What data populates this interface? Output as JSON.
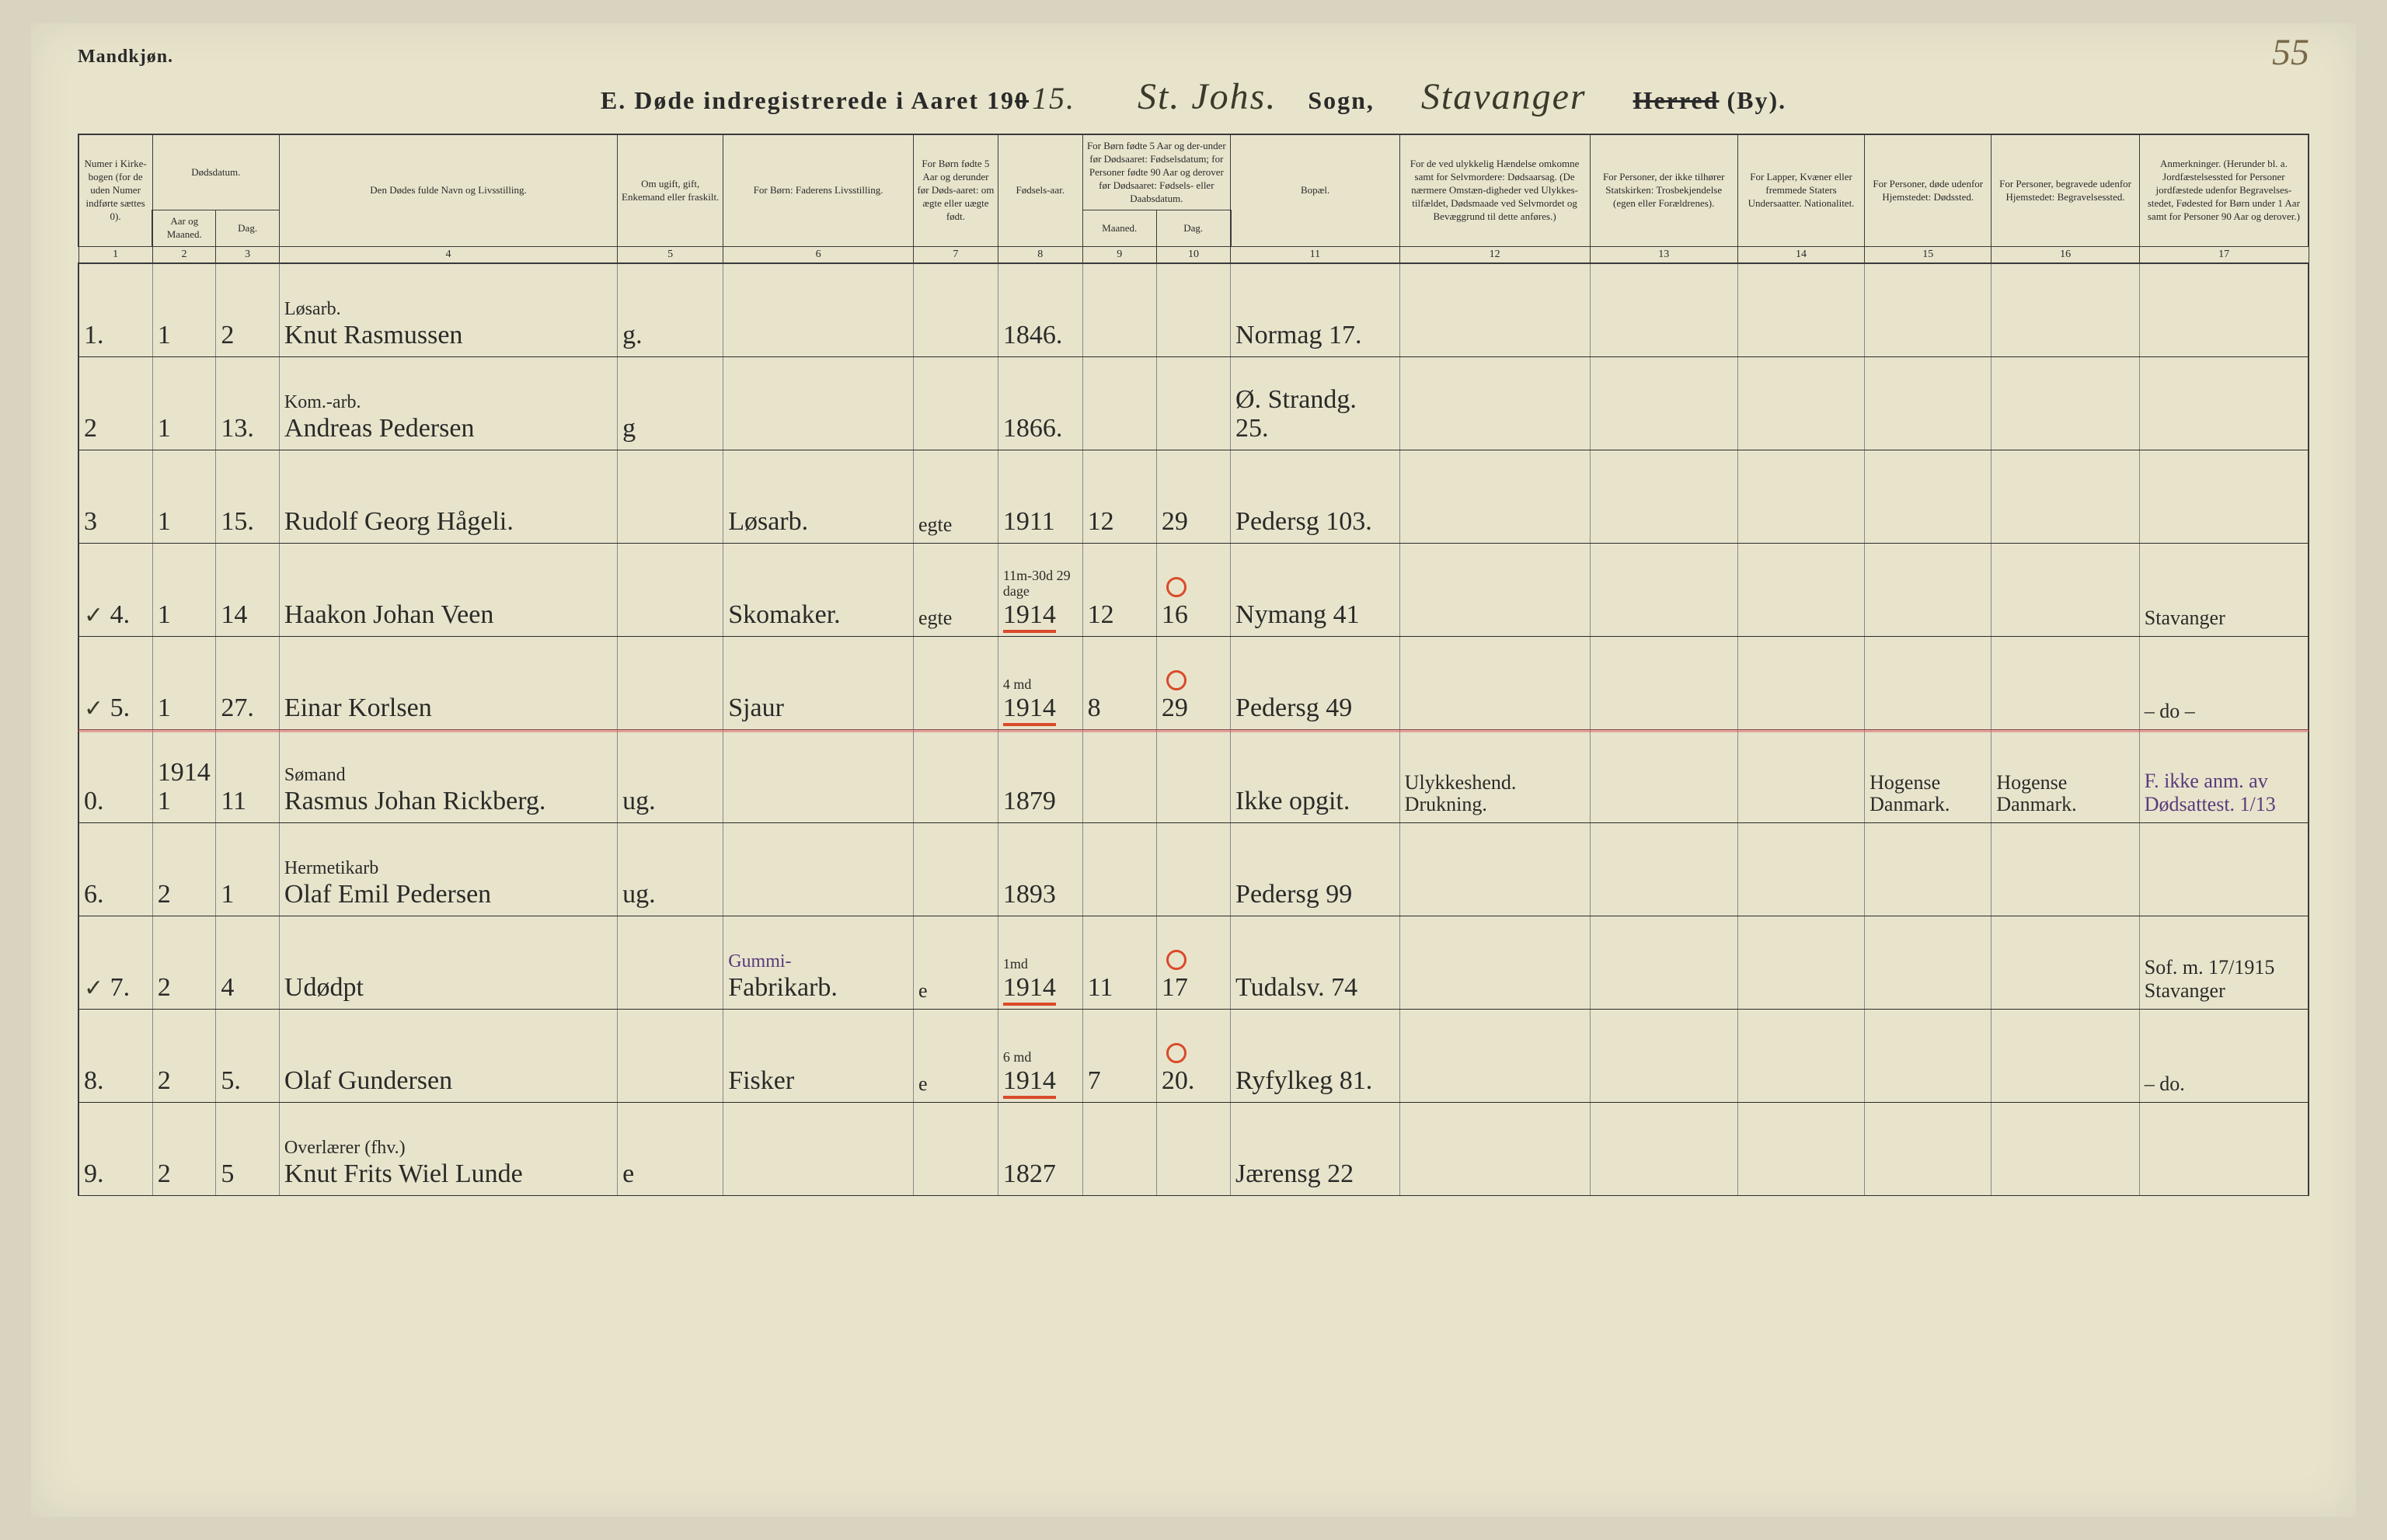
{
  "header": {
    "top_left": "Mandkjøn.",
    "title_prefix": "E.  Døde indregistrerede i Aaret 19",
    "year_strike": "0",
    "year_cursive": "15.",
    "sogn_cursive": "St. Johs.",
    "sogn_label": "Sogn,",
    "herred_cursive": "Stavanger",
    "herred_label_strike": "Herred",
    "herred_label_tail": " (By).",
    "page_number": "55"
  },
  "cols": {
    "c1": "Numer i Kirke-bogen (for de uden Numer indførte sættes 0).",
    "c2_group": "Dødsdatum.",
    "c2": "Aar og Maaned.",
    "c3": "Dag.",
    "c4": "Den Dødes fulde Navn og Livsstilling.",
    "c5": "Om ugift, gift, Enkemand eller fraskilt.",
    "c6": "For Børn: Faderens Livsstilling.",
    "c7": "For Børn fødte 5 Aar og derunder før Døds-aaret: om ægte eller uægte født.",
    "c8": "Fødsels-aar.",
    "c9_group": "For Børn fødte 5 Aar og der-under før Dødsaaret: Fødselsdatum; for Personer fødte 90 Aar og derover før Dødsaaret: Fødsels- eller Daabsdatum.",
    "c9": "Maaned.",
    "c10": "Dag.",
    "c11": "Bopæl.",
    "c12": "For de ved ulykkelig Hændelse omkomne samt for Selvmordere: Dødsaarsag. (De nærmere Omstæn-digheder ved Ulykkes-tilfældet, Dødsmaade ved Selvmordet og Bevæggrund til dette anføres.)",
    "c13": "For Personer, der ikke tilhører Statskirken: Trosbekjendelse (egen eller Forældrenes).",
    "c14": "For Lapper, Kvæner eller fremmede Staters Undersaatter. Nationalitet.",
    "c15": "For Personer, døde udenfor Hjemstedet: Dødssted.",
    "c16": "For Personer, begravede udenfor Hjemstedet: Begravelsessted.",
    "c17": "Anmerkninger. (Herunder bl. a. Jordfæstelsessted for Personer jordfæstede udenfor Begravelses-stedet, Fødested for Børn under 1 Aar samt for Personer 90 Aar og derover.)"
  },
  "colnums": [
    "1",
    "2",
    "3",
    "4",
    "5",
    "6",
    "7",
    "8",
    "9",
    "10",
    "11",
    "12",
    "13",
    "14",
    "15",
    "16",
    "17"
  ],
  "rows": [
    {
      "n": "1.",
      "m": "1",
      "d": "2",
      "name_upper": "Løsarb.",
      "name": "Knut Rasmussen",
      "civ": "g.",
      "father": "",
      "leg": "",
      "yr": "1846.",
      "fm": "",
      "fd": "",
      "addr": "Normag 17.",
      "cause": "",
      "rel": "",
      "nat": "",
      "dsted": "",
      "bsted": "",
      "anm": ""
    },
    {
      "n": "2",
      "m": "1",
      "d": "13.",
      "name_upper": "Kom.-arb.",
      "name": "Andreas Pedersen",
      "civ": "g",
      "father": "",
      "leg": "",
      "yr": "1866.",
      "fm": "",
      "fd": "",
      "addr": "Ø. Strandg. 25.",
      "cause": "",
      "rel": "",
      "nat": "",
      "dsted": "",
      "bsted": "",
      "anm": ""
    },
    {
      "n": "3",
      "m": "1",
      "d": "15.",
      "name_upper": "",
      "name": "Rudolf Georg Hågeli.",
      "civ": "",
      "father": "Løsarb.",
      "leg": "egte",
      "yr": "1911",
      "fm": "12",
      "fd": "29",
      "addr": "Pedersg 103.",
      "cause": "",
      "rel": "",
      "nat": "",
      "dsted": "",
      "bsted": "",
      "anm": ""
    },
    {
      "n": "4.",
      "m": "1",
      "d": "14",
      "name_upper": "",
      "name": "Haakon Johan Veen",
      "civ": "",
      "father": "Skomaker.",
      "leg": "egte",
      "yr": "1914",
      "yr_note": "11m-30d 29 dage",
      "fm": "12",
      "fd": "16",
      "fd_circled": true,
      "addr": "Nymang 41",
      "cause": "",
      "rel": "",
      "nat": "",
      "dsted": "",
      "bsted": "",
      "anm": "Stavanger",
      "red": true,
      "check": true
    },
    {
      "n": "5.",
      "m": "1",
      "d": "27.",
      "name_upper": "",
      "name": "Einar Korlsen",
      "civ": "",
      "father": "Sjaur",
      "leg": "",
      "yr": "1914",
      "yr_note": "4 md",
      "fm": "8",
      "fd": "29",
      "fd_circled": true,
      "addr": "Pedersg 49",
      "cause": "",
      "rel": "",
      "nat": "",
      "dsted": "",
      "bsted": "",
      "anm": "– do –",
      "red": true,
      "check": true
    },
    {
      "n": "0.",
      "m": "1914\n1",
      "d": "11",
      "name_upper": "Sømand",
      "name": "Rasmus Johan Rickberg.",
      "civ": "ug.",
      "father": "",
      "leg": "",
      "yr": "1879",
      "fm": "",
      "fd": "",
      "addr": "Ikke opgit.",
      "cause": "Ulykkeshend. Drukning.",
      "rel": "",
      "nat": "",
      "dsted": "Hogense Danmark.",
      "bsted": "Hogense Danmark.",
      "anm": "F. ikke anm. av Dødsattest. 1/13",
      "wave": true,
      "purple_anm": true
    },
    {
      "n": "6.",
      "m": "2",
      "d": "1",
      "name_upper": "Hermetikarb",
      "name": "Olaf Emil Pedersen",
      "civ": "ug.",
      "father": "",
      "leg": "",
      "yr": "1893",
      "fm": "",
      "fd": "",
      "addr": "Pedersg 99",
      "cause": "",
      "rel": "",
      "nat": "",
      "dsted": "",
      "bsted": "",
      "anm": ""
    },
    {
      "n": "7.",
      "m": "2",
      "d": "4",
      "name_upper": "",
      "name": "Udødpt",
      "civ": "",
      "father": "Fabrikarb.",
      "father_note": "Gummi-",
      "leg": "e",
      "yr": "1914",
      "yr_note": "1md",
      "fm": "11",
      "fd": "17",
      "fd_circled": true,
      "addr": "Tudalsv. 74",
      "cause": "",
      "rel": "",
      "nat": "",
      "dsted": "",
      "bsted": "",
      "anm": "Sof. m. 17/1915 Stavanger",
      "red": true,
      "check": true,
      "purple_father": true
    },
    {
      "n": "8.",
      "m": "2",
      "d": "5.",
      "name_upper": "",
      "name": "Olaf Gundersen",
      "civ": "",
      "father": "Fisker",
      "leg": "e",
      "yr": "1914",
      "yr_note": "6 md",
      "fm": "7",
      "fd": "20.",
      "fd_circled": true,
      "addr": "Ryfylkeg 81.",
      "cause": "",
      "rel": "",
      "nat": "",
      "dsted": "",
      "bsted": "",
      "anm": "– do.",
      "red": true
    },
    {
      "n": "9.",
      "m": "2",
      "d": "5",
      "name_upper": "Overlærer (fhv.)",
      "name": "Knut Frits Wiel Lunde",
      "civ": "e",
      "father": "",
      "leg": "",
      "yr": "1827",
      "fm": "",
      "fd": "",
      "addr": "Jærensg 22",
      "cause": "",
      "rel": "",
      "nat": "",
      "dsted": "",
      "bsted": "",
      "anm": ""
    }
  ]
}
